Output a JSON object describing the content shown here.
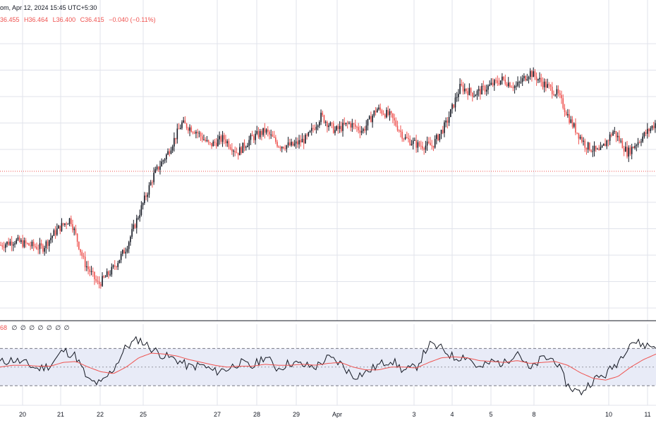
{
  "header": {
    "symbol_info": "om, Apr 12, 2024 15:45 UTC+5:30",
    "open": "36.455",
    "high": "H36.464",
    "low": "L36.400",
    "close": "C36.415",
    "change": "−0.040 (−0.11%)"
  },
  "indicator": {
    "label": "68",
    "values": "∅ ∅ ∅ ∅ ∅ ∅ ∅"
  },
  "colors": {
    "up": "#131722",
    "down": "#ef5350",
    "grid": "#e0e3eb",
    "band_fill": "#e8ebf7",
    "rsi_line": "#131722",
    "rsi_ma": "#ef5350"
  },
  "x_axis_labels": [
    "20",
    "21",
    "22",
    "25",
    "27",
    "28",
    "29",
    "Apr",
    "3",
    "4",
    "5",
    "8",
    "10",
    "11"
  ],
  "chart_data": [
    {
      "type": "candlestick",
      "title": "",
      "current_price": 36.415,
      "series_anchor_y_pixels_note": "",
      "path_values": [
        35.52,
        35.55,
        35.52,
        35.5,
        35.62,
        35.7,
        35.4,
        35.25,
        35.35,
        35.5,
        35.75,
        36.0,
        36.15,
        36.35,
        36.3,
        36.2,
        36.25,
        36.15,
        36.25,
        36.3,
        36.2,
        36.2,
        36.25,
        36.4,
        36.3,
        36.35,
        36.3,
        36.45,
        36.4,
        36.25,
        36.2,
        36.2,
        36.35,
        36.6,
        36.55,
        36.6,
        36.65,
        36.6,
        36.7,
        36.62,
        36.55,
        36.35,
        36.2,
        36.15,
        36.3,
        36.15,
        36.25,
        36.35
      ]
    },
    {
      "type": "line",
      "title": "",
      "series": [
        {
          "name": "",
          "values": [
            55,
            58,
            54,
            48,
            52,
            68,
            62,
            35,
            32,
            48,
            72,
            80,
            70,
            62,
            58,
            50,
            52,
            45,
            48,
            55,
            50,
            62,
            48,
            55,
            52,
            50,
            60,
            54,
            40,
            44,
            52,
            58,
            46,
            50,
            74,
            70,
            60,
            62,
            48,
            56,
            54,
            68,
            46,
            60,
            58,
            30,
            22,
            36,
            42,
            56,
            78,
            74,
            72
          ]
        },
        {
          "name": "",
          "values": [
            50,
            52,
            52,
            51,
            51,
            55,
            56,
            50,
            45,
            43,
            50,
            60,
            65,
            64,
            62,
            58,
            55,
            52,
            50,
            51,
            51,
            53,
            52,
            52,
            53,
            52,
            54,
            55,
            50,
            47,
            47,
            50,
            50,
            49,
            55,
            60,
            61,
            60,
            57,
            56,
            55,
            57,
            54,
            55,
            56,
            52,
            44,
            38,
            36,
            40,
            50,
            58,
            64
          ]
        }
      ]
    }
  ]
}
